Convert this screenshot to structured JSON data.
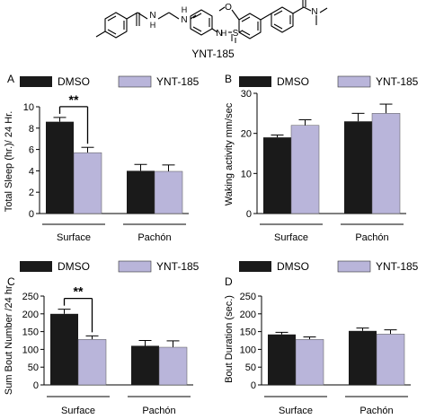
{
  "molecule": {
    "name": "YNT-185",
    "atom_labels": {
      "amide1_n": "N",
      "amide1_h": "H",
      "amine_n": "N",
      "amine_h": "H",
      "sulfonamide_n": "N",
      "sulfonamide_h": "H",
      "sulfur": "S",
      "methoxy_o": "O",
      "amide2_n": "N"
    }
  },
  "colors": {
    "dmso": "#1a1a1a",
    "ynt": "#b9b5da",
    "axis": "#000000"
  },
  "chart_data": [
    {
      "panel_letter": "A",
      "type": "bar",
      "legend": [
        "DMSO",
        "YNT-185"
      ],
      "ylabel": "Total Sleep (hr.)/ 24  Hr.",
      "ylim": [
        0,
        10
      ],
      "yticks": [
        0,
        2,
        4,
        6,
        8,
        10
      ],
      "groups": [
        "Surface",
        "Pachón"
      ],
      "series": [
        {
          "name": "DMSO",
          "values": [
            8.6,
            4.0
          ],
          "errors": [
            0.4,
            0.6
          ]
        },
        {
          "name": "YNT-185",
          "values": [
            5.7,
            3.95
          ],
          "errors": [
            0.5,
            0.6
          ]
        }
      ],
      "significance": {
        "label": "**",
        "group": 0
      }
    },
    {
      "panel_letter": "B",
      "type": "bar",
      "legend": [
        "DMSO",
        "YNT-185"
      ],
      "ylabel": "Waking activity mm/sec",
      "ylim": [
        0,
        30
      ],
      "yticks": [
        0,
        10,
        20,
        30
      ],
      "groups": [
        "Surface",
        "Pachón"
      ],
      "series": [
        {
          "name": "DMSO",
          "values": [
            19.0,
            23.0
          ],
          "errors": [
            0.6,
            2.0
          ]
        },
        {
          "name": "YNT-185",
          "values": [
            22.0,
            25.0
          ],
          "errors": [
            1.4,
            2.3
          ]
        }
      ]
    },
    {
      "panel_letter": "C",
      "type": "bar",
      "legend": [
        "DMSO",
        "YNT-185"
      ],
      "ylabel": "Sum Bout Number /24 hr.",
      "ylim": [
        0,
        250
      ],
      "yticks": [
        0,
        50,
        100,
        150,
        200,
        250
      ],
      "groups": [
        "Surface",
        "Pachón"
      ],
      "series": [
        {
          "name": "DMSO",
          "values": [
            200,
            110
          ],
          "errors": [
            13,
            15
          ]
        },
        {
          "name": "YNT-185",
          "values": [
            128,
            106
          ],
          "errors": [
            10,
            18
          ]
        }
      ],
      "significance": {
        "label": "**",
        "group": 0
      }
    },
    {
      "panel_letter": "D",
      "type": "bar",
      "legend": [
        "DMSO",
        "YNT-185"
      ],
      "ylabel": "Bout Duration (sec.)",
      "ylim": [
        0,
        250
      ],
      "yticks": [
        0,
        50,
        100,
        150,
        200,
        250
      ],
      "groups": [
        "Surface",
        "Pachón"
      ],
      "series": [
        {
          "name": "DMSO",
          "values": [
            142,
            152
          ],
          "errors": [
            6,
            8
          ]
        },
        {
          "name": "YNT-185",
          "values": [
            128,
            143
          ],
          "errors": [
            7,
            12
          ]
        }
      ]
    }
  ]
}
